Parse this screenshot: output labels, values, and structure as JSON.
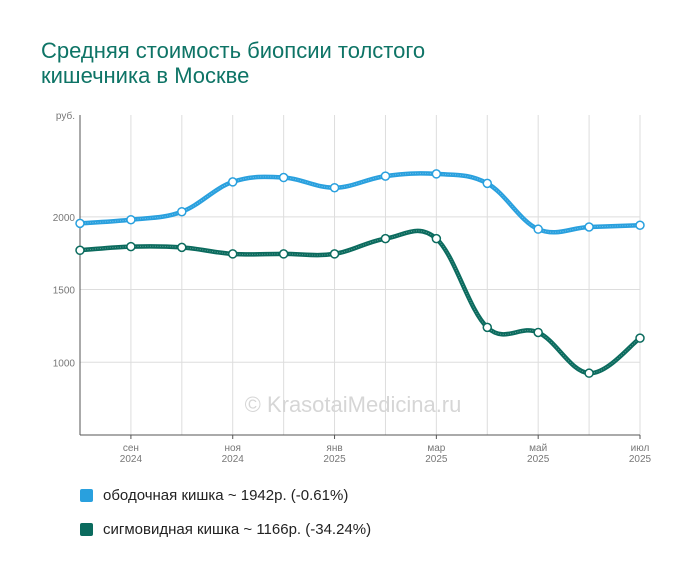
{
  "title_lines": [
    "Средняя стоимость биопсии толстого",
    "кишечника в Москве"
  ],
  "watermark": "© KrasotaiMedicina.ru",
  "chart_data": {
    "type": "line",
    "title": "Средняя стоимость биопсии толстого кишечника в Москве",
    "ylabel": "руб.",
    "ylim": [
      500,
      2700
    ],
    "yticks": [
      1000,
      1500,
      2000
    ],
    "x_tick_labels": [
      {
        "index": 1,
        "month": "сен",
        "year": "2024"
      },
      {
        "index": 3,
        "month": "ноя",
        "year": "2024"
      },
      {
        "index": 5,
        "month": "янв",
        "year": "2025"
      },
      {
        "index": 7,
        "month": "мар",
        "year": "2025"
      },
      {
        "index": 9,
        "month": "май",
        "year": "2025"
      },
      {
        "index": 11,
        "month": "июл",
        "year": "2025"
      }
    ],
    "x": [
      "2024-08",
      "2024-09",
      "2024-10",
      "2024-11",
      "2024-12",
      "2025-01",
      "2025-02",
      "2025-03",
      "2025-04",
      "2025-05",
      "2025-06",
      "2025-07"
    ],
    "grid": true,
    "legend_position": "bottom",
    "series": [
      {
        "name": "ободочная кишка",
        "color": "#29a0de",
        "values": [
          1955,
          1980,
          2035,
          2240,
          2270,
          2200,
          2280,
          2295,
          2230,
          1915,
          1930,
          1942
        ]
      },
      {
        "name": "сигмовидная кишка",
        "color": "#0b6b5e",
        "values": [
          1770,
          1795,
          1790,
          1745,
          1745,
          1745,
          1850,
          1850,
          1240,
          1205,
          925,
          1166
        ]
      }
    ]
  },
  "legend": [
    {
      "text": "ободочная кишка ~ 1942р. (-0.61%)",
      "color": "#29a0de"
    },
    {
      "text": "сигмовидная кишка ~ 1166р. (-34.24%)",
      "color": "#0b6b5e"
    }
  ]
}
